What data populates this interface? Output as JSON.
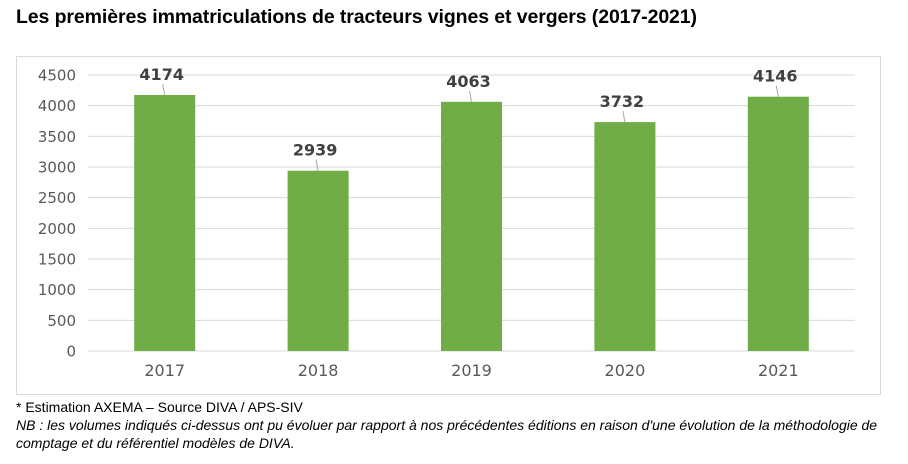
{
  "title": "Les premières immatriculations de tracteurs vignes et vergers (2017-2021)",
  "chart_data": {
    "type": "bar",
    "categories": [
      "2017",
      "2018",
      "2019",
      "2020",
      "2021"
    ],
    "values": [
      4174,
      2939,
      4063,
      3732,
      4146
    ],
    "data_labels": [
      "4174",
      "2939",
      "4063",
      "3732",
      "4146"
    ],
    "ylim": [
      0,
      4500
    ],
    "yticks": [
      "0",
      "500",
      "1000",
      "1500",
      "2000",
      "2500",
      "3000",
      "3500",
      "4000",
      "4500"
    ],
    "grid": true,
    "bar_color": "#70ad47"
  },
  "notes": {
    "source": "* Estimation AXEMA – Source DIVA / APS-SIV",
    "nb": "NB : les volumes indiqués ci-dessus ont pu évoluer par rapport à nos précédentes éditions en raison d'une évolution de la méthodologie de comptage et du référentiel modèles de DIVA."
  }
}
